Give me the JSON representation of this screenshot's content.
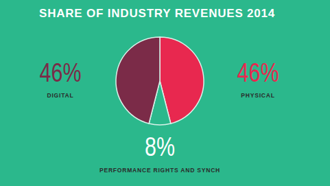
{
  "chart_data": {
    "type": "pie",
    "title": "SHARE OF INDUSTRY REVENUES 2014",
    "categories": [
      "PHYSICAL",
      "PERFORMANCE RIGHTS AND SYNCH",
      "DIGITAL"
    ],
    "values": [
      46,
      8,
      46
    ],
    "value_labels": [
      "46%",
      "8%",
      "46%"
    ],
    "colors": [
      "#e8284f",
      "#2bb88c",
      "#7b2b48"
    ],
    "data_labels": true
  }
}
